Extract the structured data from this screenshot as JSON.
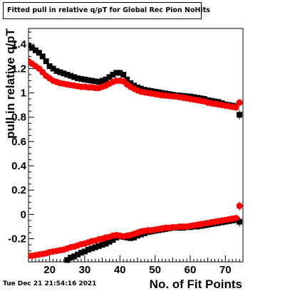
{
  "header": {
    "title": "Fitted pull in relative q/pT for Global Rec Pion NoHits"
  },
  "footer": {
    "timestamp": "Tue Dec 21 21:54:16 2021"
  },
  "chart_data": {
    "type": "scatter",
    "title": "Fitted pull in relative q/pT for Global Rec Pion NoHits",
    "xlabel": "No. of Fit Points",
    "ylabel": "pull in relative q/pT",
    "xlim": [
      14,
      75
    ],
    "ylim": [
      -0.39,
      1.53
    ],
    "xticks": [
      20,
      30,
      40,
      50,
      60,
      70
    ],
    "xtick_labels": [
      "20",
      "30",
      "40",
      "50",
      "60",
      "70"
    ],
    "yticks": [
      -0.2,
      0,
      0.2,
      0.4,
      0.6,
      0.8,
      1,
      1.2,
      1.4
    ],
    "ytick_labels": [
      "-0.2",
      "0",
      "0.2",
      "0.4",
      "0.6",
      "0.8",
      "1",
      "1.2",
      "1.4"
    ],
    "grid": false,
    "series": [
      {
        "color": "#000000",
        "marker": "square",
        "x": [
          14,
          15,
          16,
          17,
          18,
          19,
          20,
          21,
          22,
          23,
          24,
          25,
          26,
          27,
          28,
          29,
          30,
          31,
          32,
          33,
          34,
          35,
          36,
          37,
          38,
          39,
          40,
          41,
          42,
          43,
          44,
          45,
          46,
          47,
          48,
          49,
          50,
          51,
          52,
          53,
          54,
          55,
          56,
          57,
          58,
          59,
          60,
          61,
          62,
          63,
          64,
          65,
          66,
          67,
          68,
          69,
          70,
          71,
          72,
          73,
          74
        ],
        "y": [
          1.39,
          1.37,
          1.35,
          1.33,
          1.3,
          1.26,
          1.22,
          1.2,
          1.18,
          1.17,
          1.16,
          1.15,
          1.14,
          1.13,
          1.12,
          1.115,
          1.11,
          1.105,
          1.1,
          1.095,
          1.09,
          1.1,
          1.11,
          1.13,
          1.15,
          1.165,
          1.165,
          1.15,
          1.11,
          1.08,
          1.06,
          1.045,
          1.035,
          1.025,
          1.02,
          1.015,
          1.01,
          1.005,
          1.0,
          0.995,
          0.99,
          0.985,
          0.98,
          0.978,
          0.975,
          0.972,
          0.97,
          0.965,
          0.96,
          0.955,
          0.95,
          0.94,
          0.935,
          0.93,
          0.925,
          0.915,
          0.905,
          0.9,
          0.895,
          0.89,
          0.82
        ],
        "yerr": [
          0,
          0,
          0,
          0,
          0,
          0,
          0,
          0,
          0,
          0,
          0,
          0,
          0,
          0,
          0,
          0,
          0,
          0,
          0,
          0,
          0,
          0,
          0,
          0,
          0,
          0,
          0,
          0,
          0,
          0,
          0,
          0,
          0,
          0,
          0,
          0,
          0,
          0,
          0,
          0,
          0,
          0,
          0,
          0,
          0,
          0,
          0,
          0,
          0,
          0,
          0,
          0,
          0,
          0,
          0,
          0,
          0,
          0,
          0,
          0,
          0.04
        ]
      },
      {
        "color": "#ff0000",
        "marker": "circle",
        "x": [
          14,
          15,
          16,
          17,
          18,
          19,
          20,
          21,
          22,
          23,
          24,
          25,
          26,
          27,
          28,
          29,
          30,
          31,
          32,
          33,
          34,
          35,
          36,
          37,
          38,
          39,
          40,
          41,
          42,
          43,
          44,
          45,
          46,
          47,
          48,
          49,
          50,
          51,
          52,
          53,
          54,
          55,
          56,
          57,
          58,
          59,
          60,
          61,
          62,
          63,
          64,
          65,
          66,
          67,
          68,
          69,
          70,
          71,
          72,
          73,
          74
        ],
        "y": [
          1.26,
          1.24,
          1.22,
          1.2,
          1.17,
          1.14,
          1.12,
          1.1,
          1.09,
          1.08,
          1.075,
          1.07,
          1.065,
          1.06,
          1.055,
          1.05,
          1.05,
          1.045,
          1.045,
          1.04,
          1.04,
          1.05,
          1.06,
          1.075,
          1.09,
          1.1,
          1.1,
          1.095,
          1.07,
          1.05,
          1.035,
          1.02,
          1.01,
          1.005,
          1.0,
          0.995,
          0.99,
          0.985,
          0.98,
          0.978,
          0.975,
          0.972,
          0.97,
          0.965,
          0.96,
          0.955,
          0.95,
          0.945,
          0.94,
          0.935,
          0.93,
          0.92,
          0.915,
          0.91,
          0.905,
          0.9,
          0.895,
          0.89,
          0.885,
          0.88,
          0.92
        ],
        "yerr": [
          0,
          0,
          0,
          0,
          0,
          0,
          0,
          0,
          0,
          0,
          0,
          0,
          0,
          0,
          0,
          0,
          0,
          0,
          0,
          0,
          0,
          0,
          0,
          0,
          0,
          0,
          0,
          0,
          0,
          0,
          0,
          0,
          0,
          0,
          0,
          0,
          0,
          0,
          0,
          0,
          0,
          0,
          0,
          0,
          0,
          0,
          0,
          0,
          0,
          0,
          0,
          0,
          0,
          0,
          0,
          0,
          0,
          0,
          0,
          0,
          0.03
        ]
      },
      {
        "color": "#000000",
        "marker": "square",
        "x": [
          25,
          26,
          27,
          28,
          29,
          30,
          31,
          32,
          33,
          34,
          35,
          36,
          37,
          38,
          39,
          40,
          41,
          42,
          43,
          44,
          45,
          46,
          47,
          48,
          49,
          50,
          51,
          52,
          53,
          54,
          55,
          56,
          57,
          58,
          59,
          60,
          61,
          62,
          63,
          64,
          65,
          66,
          67,
          68,
          69,
          70,
          71,
          72,
          73,
          74
        ],
        "y": [
          -0.375,
          -0.355,
          -0.345,
          -0.33,
          -0.315,
          -0.305,
          -0.29,
          -0.28,
          -0.27,
          -0.26,
          -0.25,
          -0.24,
          -0.225,
          -0.21,
          -0.19,
          -0.18,
          -0.185,
          -0.19,
          -0.195,
          -0.19,
          -0.175,
          -0.165,
          -0.155,
          -0.145,
          -0.14,
          -0.135,
          -0.13,
          -0.125,
          -0.12,
          -0.115,
          -0.11,
          -0.11,
          -0.11,
          -0.11,
          -0.105,
          -0.105,
          -0.1,
          -0.1,
          -0.095,
          -0.09,
          -0.085,
          -0.08,
          -0.075,
          -0.07,
          -0.065,
          -0.06,
          -0.055,
          -0.05,
          -0.045,
          -0.06
        ],
        "yerr": [
          0,
          0,
          0,
          0,
          0,
          0,
          0,
          0,
          0,
          0,
          0,
          0,
          0,
          0,
          0,
          0,
          0,
          0,
          0,
          0,
          0,
          0,
          0,
          0,
          0,
          0,
          0,
          0,
          0,
          0,
          0,
          0,
          0,
          0,
          0,
          0,
          0,
          0,
          0,
          0,
          0,
          0,
          0,
          0,
          0,
          0,
          0,
          0,
          0,
          0.04
        ]
      },
      {
        "color": "#ff0000",
        "marker": "circle",
        "x": [
          14,
          15,
          16,
          17,
          18,
          19,
          20,
          21,
          22,
          23,
          24,
          25,
          26,
          27,
          28,
          29,
          30,
          31,
          32,
          33,
          34,
          35,
          36,
          37,
          38,
          39,
          40,
          41,
          42,
          43,
          44,
          45,
          46,
          47,
          48,
          49,
          50,
          51,
          52,
          53,
          54,
          55,
          56,
          57,
          58,
          59,
          60,
          61,
          62,
          63,
          64,
          65,
          66,
          67,
          68,
          69,
          70,
          71,
          72,
          73,
          74
        ],
        "y": [
          -0.34,
          -0.34,
          -0.335,
          -0.33,
          -0.325,
          -0.32,
          -0.31,
          -0.305,
          -0.3,
          -0.295,
          -0.29,
          -0.28,
          -0.27,
          -0.265,
          -0.255,
          -0.245,
          -0.24,
          -0.23,
          -0.22,
          -0.215,
          -0.205,
          -0.2,
          -0.19,
          -0.185,
          -0.175,
          -0.17,
          -0.175,
          -0.18,
          -0.175,
          -0.17,
          -0.16,
          -0.15,
          -0.14,
          -0.135,
          -0.13,
          -0.13,
          -0.125,
          -0.12,
          -0.115,
          -0.11,
          -0.11,
          -0.105,
          -0.105,
          -0.1,
          -0.1,
          -0.1,
          -0.095,
          -0.09,
          -0.085,
          -0.08,
          -0.075,
          -0.07,
          -0.065,
          -0.06,
          -0.055,
          -0.05,
          -0.045,
          -0.04,
          -0.035,
          -0.03,
          0.07
        ],
        "yerr": [
          0,
          0,
          0,
          0,
          0,
          0,
          0,
          0,
          0,
          0,
          0,
          0,
          0,
          0,
          0,
          0,
          0,
          0,
          0,
          0,
          0,
          0,
          0,
          0,
          0,
          0,
          0,
          0,
          0,
          0,
          0,
          0,
          0,
          0,
          0,
          0,
          0,
          0,
          0,
          0,
          0,
          0,
          0,
          0,
          0,
          0,
          0,
          0,
          0,
          0,
          0,
          0,
          0,
          0,
          0,
          0,
          0,
          0,
          0,
          0,
          0.04
        ]
      }
    ]
  }
}
